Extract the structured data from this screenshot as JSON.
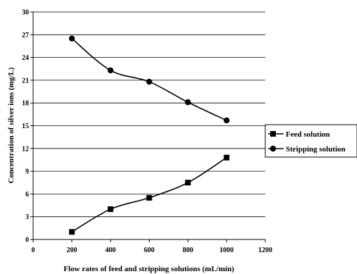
{
  "chart_data": {
    "type": "line",
    "title": "",
    "xlabel": "Flow rates of feed and stripping solutions (mL/min)",
    "ylabel": "Concentration of silver ions (mg/L)",
    "xlim": [
      0,
      1200
    ],
    "ylim": [
      0,
      30
    ],
    "xticks": [
      0,
      200,
      400,
      600,
      800,
      1000,
      1200
    ],
    "yticks": [
      0,
      3,
      6,
      9,
      12,
      15,
      18,
      21,
      24,
      27,
      30
    ],
    "grid": "horizontal",
    "legend_position": "right",
    "series": [
      {
        "name": "Feed solution",
        "marker": "square",
        "color": "#000000",
        "x": [
          200,
          400,
          600,
          800,
          1000
        ],
        "y": [
          1.0,
          4.0,
          5.5,
          7.5,
          10.8
        ]
      },
      {
        "name": "Stripping solution",
        "marker": "circle",
        "color": "#000000",
        "x": [
          200,
          400,
          600,
          800,
          1000
        ],
        "y": [
          26.5,
          22.3,
          20.8,
          18.1,
          15.7
        ]
      }
    ]
  }
}
